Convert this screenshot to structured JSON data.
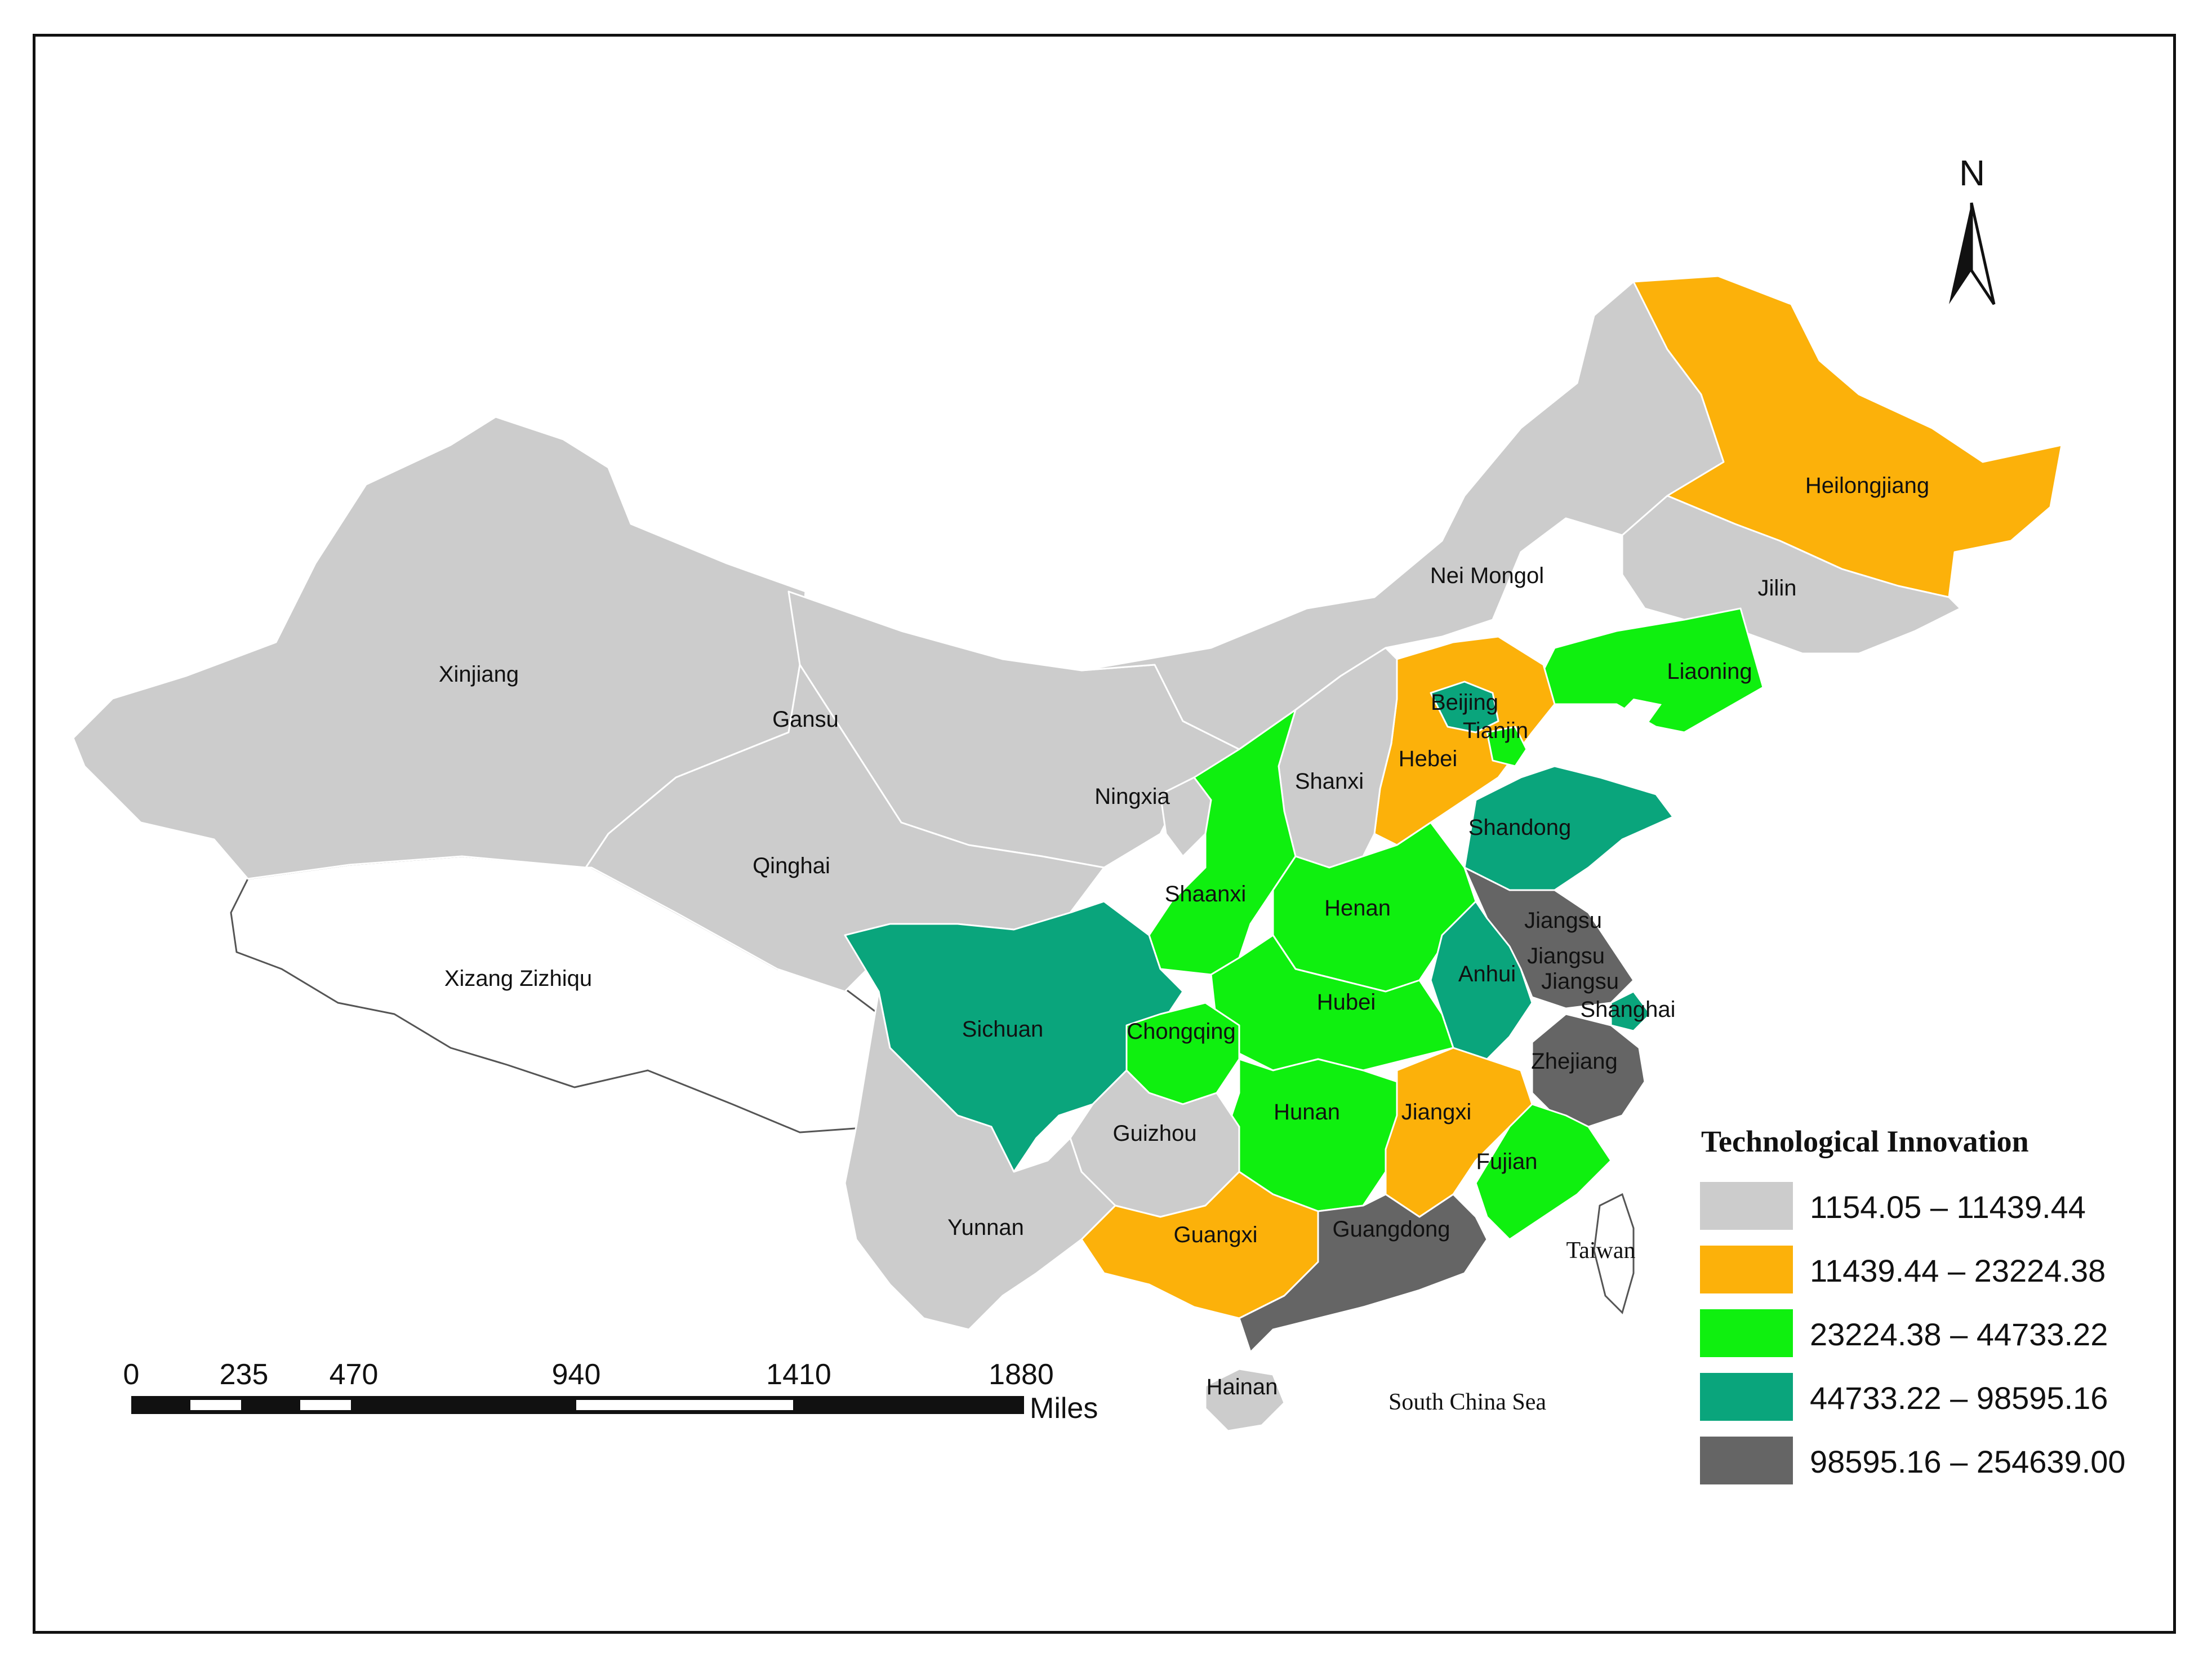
{
  "map": {
    "provinces": [
      {
        "name": "Xinjiang",
        "class": 1
      },
      {
        "name": "Gansu",
        "class": 1
      },
      {
        "name": "Qinghai",
        "class": 1
      },
      {
        "name": "Xizang Zizhiqu",
        "class": 0
      },
      {
        "name": "Nei Mongol",
        "class": 1
      },
      {
        "name": "Heilongjiang",
        "class": 2
      },
      {
        "name": "Jilin",
        "class": 1
      },
      {
        "name": "Liaoning",
        "class": 3
      },
      {
        "name": "Beijing",
        "class": 4
      },
      {
        "name": "Tianjin",
        "class": 3
      },
      {
        "name": "Hebei",
        "class": 2
      },
      {
        "name": "Shanxi",
        "class": 1
      },
      {
        "name": "Ningxia",
        "class": 1
      },
      {
        "name": "Shaanxi",
        "class": 3
      },
      {
        "name": "Shandong",
        "class": 4
      },
      {
        "name": "Henan",
        "class": 3
      },
      {
        "name": "Jiangsu",
        "class": 5
      },
      {
        "name": "Anhui",
        "class": 4
      },
      {
        "name": "Shanghai",
        "class": 4
      },
      {
        "name": "Hubei",
        "class": 3
      },
      {
        "name": "Sichuan",
        "class": 4
      },
      {
        "name": "Chongqing",
        "class": 3
      },
      {
        "name": "Zhejiang",
        "class": 5
      },
      {
        "name": "Hunan",
        "class": 3
      },
      {
        "name": "Jiangxi",
        "class": 2
      },
      {
        "name": "Fujian",
        "class": 3
      },
      {
        "name": "Guizhou",
        "class": 1
      },
      {
        "name": "Yunnan",
        "class": 1
      },
      {
        "name": "Guangxi",
        "class": 2
      },
      {
        "name": "Guangdong",
        "class": 5
      },
      {
        "name": "Hainan",
        "class": 1
      },
      {
        "name": "Taiwan",
        "class": 0
      }
    ],
    "extra_labels": [
      "Jiangsu",
      "Jiangsu"
    ],
    "sea_label": "South China Sea"
  },
  "legend": {
    "title": "Technological Innovation",
    "classes": [
      {
        "range": "1154.05 – 11439.44",
        "color": "#cccccc"
      },
      {
        "range": "11439.44 – 23224.38",
        "color": "#fcb10a"
      },
      {
        "range": "23224.38 – 44733.22",
        "color": "#0ff00f"
      },
      {
        "range": "44733.22 – 98595.16",
        "color": "#0aa57c"
      },
      {
        "range": "98595.16 – 254639.00",
        "color": "#656565"
      }
    ]
  },
  "north_arrow": {
    "label": "N"
  },
  "scale_bar": {
    "ticks": [
      "0",
      "235",
      "470",
      "940",
      "1410",
      "1880"
    ],
    "unit": "Miles"
  }
}
